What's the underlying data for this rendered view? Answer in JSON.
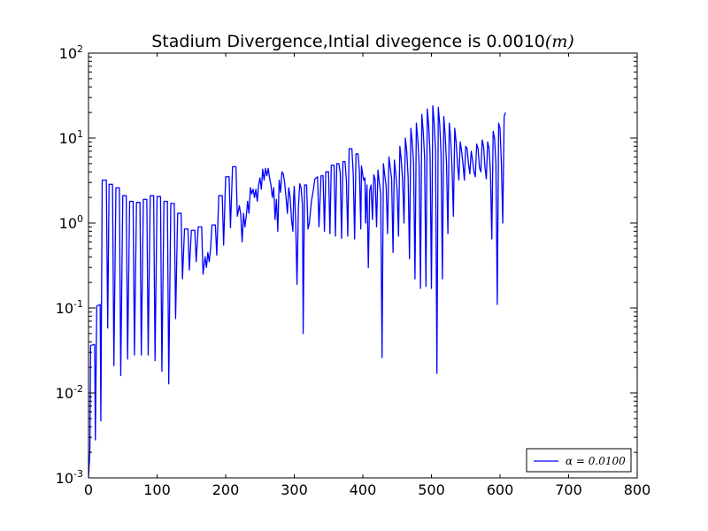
{
  "chart_data": {
    "type": "line",
    "title": "Stadium Divergence,Intial divegence is 0.0010",
    "title_unit": "(m)",
    "xlabel": "",
    "ylabel": "",
    "xlim": [
      0,
      800
    ],
    "ylim": [
      0.001,
      100
    ],
    "yscale": "log",
    "grid": false,
    "legend_position": "lower-right",
    "x_ticks": [
      0,
      100,
      200,
      300,
      400,
      500,
      600,
      700,
      800
    ],
    "y_ticks": [
      {
        "value": 0.001,
        "base": "10",
        "exp": "-3"
      },
      {
        "value": 0.01,
        "base": "10",
        "exp": "-2"
      },
      {
        "value": 0.1,
        "base": "10",
        "exp": "-1"
      },
      {
        "value": 1,
        "base": "10",
        "exp": "0"
      },
      {
        "value": 10,
        "base": "10",
        "exp": "1"
      },
      {
        "value": 100,
        "base": "10",
        "exp": "2"
      }
    ],
    "series": [
      {
        "name": "α = 0.0100",
        "color": "#0000ff",
        "points": [
          [
            0,
            0.001
          ],
          [
            2,
            0.002
          ],
          [
            3,
            0.036
          ],
          [
            7,
            0.037
          ],
          [
            9,
            0.037
          ],
          [
            10,
            0.0028
          ],
          [
            12,
            0.105
          ],
          [
            17,
            0.11
          ],
          [
            18,
            0.0047
          ],
          [
            20,
            3.2
          ],
          [
            26,
            3.2
          ],
          [
            28,
            0.058
          ],
          [
            30,
            2.85
          ],
          [
            35,
            2.85
          ],
          [
            37,
            0.021
          ],
          [
            40,
            2.6
          ],
          [
            45,
            2.6
          ],
          [
            47,
            0.016
          ],
          [
            50,
            2.1
          ],
          [
            55,
            2.1
          ],
          [
            57,
            0.025
          ],
          [
            60,
            1.8
          ],
          [
            65,
            1.8
          ],
          [
            67,
            0.028
          ],
          [
            70,
            1.75
          ],
          [
            75,
            1.75
          ],
          [
            77,
            0.028
          ],
          [
            80,
            1.9
          ],
          [
            85,
            1.9
          ],
          [
            87,
            0.028
          ],
          [
            90,
            2.1
          ],
          [
            95,
            2.1
          ],
          [
            97,
            0.024
          ],
          [
            100,
            2.05
          ],
          [
            105,
            2.05
          ],
          [
            107,
            0.018
          ],
          [
            110,
            1.8
          ],
          [
            115,
            1.8
          ],
          [
            117,
            0.0128
          ],
          [
            120,
            1.7
          ],
          [
            125,
            1.7
          ],
          [
            127,
            0.075
          ],
          [
            130,
            1.3
          ],
          [
            135,
            1.3
          ],
          [
            137,
            0.22
          ],
          [
            140,
            0.85
          ],
          [
            145,
            0.85
          ],
          [
            147,
            0.28
          ],
          [
            150,
            0.82
          ],
          [
            155,
            0.82
          ],
          [
            157,
            0.35
          ],
          [
            160,
            0.9
          ],
          [
            165,
            0.9
          ],
          [
            167,
            0.25
          ],
          [
            170,
            0.4
          ],
          [
            172,
            0.3
          ],
          [
            174,
            0.45
          ],
          [
            176,
            0.35
          ],
          [
            178,
            0.5
          ],
          [
            180,
            0.95
          ],
          [
            185,
            0.95
          ],
          [
            187,
            0.42
          ],
          [
            190,
            2.1
          ],
          [
            195,
            2.1
          ],
          [
            197,
            0.55
          ],
          [
            200,
            3.5
          ],
          [
            205,
            3.5
          ],
          [
            207,
            0.88
          ],
          [
            210,
            4.6
          ],
          [
            215,
            4.6
          ],
          [
            217,
            1.2
          ],
          [
            220,
            1.6
          ],
          [
            222,
            1.25
          ],
          [
            224,
            0.6
          ],
          [
            226,
            1.3
          ],
          [
            228,
            0.9
          ],
          [
            230,
            1.2
          ],
          [
            232,
            1.8
          ],
          [
            234,
            1.3
          ],
          [
            236,
            2.6
          ],
          [
            238,
            2.2
          ],
          [
            240,
            2.5
          ],
          [
            242,
            2.0
          ],
          [
            244,
            2.5
          ],
          [
            246,
            1.8
          ],
          [
            248,
            2.8
          ],
          [
            250,
            3.4
          ],
          [
            252,
            2.5
          ],
          [
            254,
            4.3
          ],
          [
            256,
            3.2
          ],
          [
            258,
            4.4
          ],
          [
            260,
            3.6
          ],
          [
            262,
            4.4
          ],
          [
            264,
            3.4
          ],
          [
            266,
            2.8
          ],
          [
            268,
            2.0
          ],
          [
            270,
            2.6
          ],
          [
            272,
            1.1
          ],
          [
            274,
            1.9
          ],
          [
            276,
            0.8
          ],
          [
            278,
            3.2
          ],
          [
            280,
            2.3
          ],
          [
            282,
            4.0
          ],
          [
            284,
            3.8
          ],
          [
            286,
            3.0
          ],
          [
            288,
            2.0
          ],
          [
            290,
            1.3
          ],
          [
            292,
            2.6
          ],
          [
            294,
            2.0
          ],
          [
            296,
            1.1
          ],
          [
            298,
            0.8
          ],
          [
            299,
            1.9
          ],
          [
            300,
            2.7
          ],
          [
            302,
            1.1
          ],
          [
            304,
            0.19
          ],
          [
            306,
            1.5
          ],
          [
            308,
            2.9
          ],
          [
            310,
            2.6
          ],
          [
            312,
            1.6
          ],
          [
            313,
            0.05
          ],
          [
            315,
            2.8
          ],
          [
            318,
            2.8
          ],
          [
            320,
            0.85
          ],
          [
            322,
            1.0
          ],
          [
            325,
            1.8
          ],
          [
            328,
            2.5
          ],
          [
            330,
            3.3
          ],
          [
            334,
            3.5
          ],
          [
            336,
            0.9
          ],
          [
            339,
            3.6
          ],
          [
            342,
            3.6
          ],
          [
            344,
            0.8
          ],
          [
            346,
            4.0
          ],
          [
            350,
            4.0
          ],
          [
            352,
            0.75
          ],
          [
            354,
            4.8
          ],
          [
            358,
            4.8
          ],
          [
            360,
            0.7
          ],
          [
            362,
            5.0
          ],
          [
            365,
            5.0
          ],
          [
            367,
            3.9
          ],
          [
            369,
            0.66
          ],
          [
            371,
            5.3
          ],
          [
            374,
            5.3
          ],
          [
            376,
            3.2
          ],
          [
            378,
            0.7
          ],
          [
            380,
            7.5
          ],
          [
            384,
            7.5
          ],
          [
            386,
            3.8
          ],
          [
            388,
            0.65
          ],
          [
            390,
            6.5
          ],
          [
            393,
            6.5
          ],
          [
            395,
            4.0
          ],
          [
            397,
            0.85
          ],
          [
            398,
            4.7
          ],
          [
            401,
            3.2
          ],
          [
            403,
            3.4
          ],
          [
            404,
            1.0
          ],
          [
            406,
            2.8
          ],
          [
            408,
            0.3
          ],
          [
            410,
            2.4
          ],
          [
            412,
            2.8
          ],
          [
            414,
            1.1
          ],
          [
            416,
            3.7
          ],
          [
            418,
            3.2
          ],
          [
            420,
            0.9
          ],
          [
            422,
            4.2
          ],
          [
            424,
            3.0
          ],
          [
            426,
            2.2
          ],
          [
            428,
            0.026
          ],
          [
            430,
            5.0
          ],
          [
            432,
            3.6
          ],
          [
            434,
            2.7
          ],
          [
            436,
            0.75
          ],
          [
            438,
            6.0
          ],
          [
            440,
            4.5
          ],
          [
            442,
            3.3
          ],
          [
            444,
            0.45
          ],
          [
            446,
            5.5
          ],
          [
            448,
            3.8
          ],
          [
            450,
            2.4
          ],
          [
            452,
            0.7
          ],
          [
            454,
            8.0
          ],
          [
            456,
            5.5
          ],
          [
            458,
            3.2
          ],
          [
            460,
            1.0
          ],
          [
            462,
            10.0
          ],
          [
            464,
            7.0
          ],
          [
            466,
            3.5
          ],
          [
            468,
            0.38
          ],
          [
            470,
            13.0
          ],
          [
            472,
            9.0
          ],
          [
            474,
            5.0
          ],
          [
            476,
            0.22
          ],
          [
            478,
            15.0
          ],
          [
            480,
            10.0
          ],
          [
            482,
            5.0
          ],
          [
            484,
            0.17
          ],
          [
            486,
            19.0
          ],
          [
            488,
            12.0
          ],
          [
            490,
            6.0
          ],
          [
            492,
            0.18
          ],
          [
            494,
            22.0
          ],
          [
            496,
            14.0
          ],
          [
            498,
            6.5
          ],
          [
            500,
            0.17
          ],
          [
            502,
            24.0
          ],
          [
            504,
            15.0
          ],
          [
            506,
            7.0
          ],
          [
            508,
            0.017
          ],
          [
            510,
            23.0
          ],
          [
            512,
            15.0
          ],
          [
            514,
            6.5
          ],
          [
            516,
            0.22
          ],
          [
            518,
            18.0
          ],
          [
            520,
            11.0
          ],
          [
            522,
            5.0
          ],
          [
            524,
            0.75
          ],
          [
            526,
            15.0
          ],
          [
            528,
            10.0
          ],
          [
            530,
            4.5
          ],
          [
            532,
            1.2
          ],
          [
            534,
            13.0
          ],
          [
            536,
            9.0
          ],
          [
            538,
            5.0
          ],
          [
            540,
            3.2
          ],
          [
            542,
            9.0
          ],
          [
            544,
            7.0
          ],
          [
            546,
            5.0
          ],
          [
            548,
            3.2
          ],
          [
            550,
            8.0
          ],
          [
            552,
            7.5
          ],
          [
            554,
            5.0
          ],
          [
            556,
            3.8
          ],
          [
            558,
            7.0
          ],
          [
            560,
            5.5
          ],
          [
            562,
            4.0
          ],
          [
            564,
            3.5
          ],
          [
            566,
            8.5
          ],
          [
            568,
            7.5
          ],
          [
            570,
            4.5
          ],
          [
            572,
            4.0
          ],
          [
            574,
            9.5
          ],
          [
            576,
            8.0
          ],
          [
            578,
            4.6
          ],
          [
            580,
            3.3
          ],
          [
            582,
            9.0
          ],
          [
            584,
            7.5
          ],
          [
            586,
            4.0
          ],
          [
            588,
            0.65
          ],
          [
            590,
            12.0
          ],
          [
            592,
            10.0
          ],
          [
            594,
            5.0
          ],
          [
            596,
            0.11
          ],
          [
            598,
            15.0
          ],
          [
            600,
            13.0
          ],
          [
            602,
            5.0
          ],
          [
            604,
            1.0
          ],
          [
            606,
            18.0
          ],
          [
            608,
            20.0
          ]
        ]
      }
    ]
  }
}
